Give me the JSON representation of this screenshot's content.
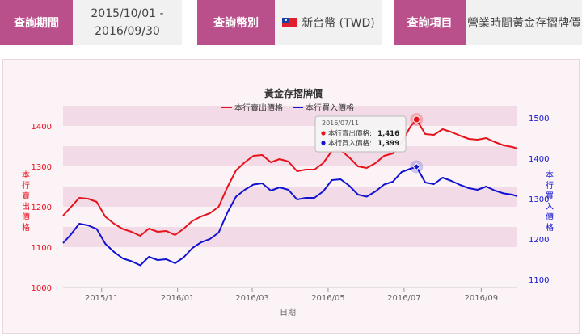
{
  "query": {
    "period_label": "查詢期間",
    "period_start": "2015/10/01 -",
    "period_end": "2016/09/30",
    "currency_label": "查詢幣別",
    "currency_value": "新台幣 (TWD)",
    "item_label": "查詢項目",
    "item_value": "營業時間黃金存摺牌價"
  },
  "colors": {
    "accent": "#b9508c",
    "sell": "#e8121c",
    "buy": "#1212d2",
    "band": "#f2dbe6"
  },
  "chart_data": {
    "type": "line",
    "title": "黃金存摺牌價",
    "xlabel": "日期",
    "ylabel_left": "本行賣出價格",
    "ylabel_right": "本行買入價格",
    "ylim_left": [
      1000,
      1400
    ],
    "ylim_right": [
      1100,
      1500
    ],
    "yticks_left": [
      "1000",
      "1100",
      "1200",
      "1300",
      "1400"
    ],
    "yticks_right": [
      "1100",
      "1200",
      "1300",
      "1400",
      "1500"
    ],
    "xticks": [
      "2015/11",
      "2016/01",
      "2016/03",
      "2016/05",
      "2016/07",
      "2016/09"
    ],
    "legend_position": "top-center",
    "series": [
      {
        "name": "本行賣出價格",
        "axis": "left",
        "color": "#e8121c",
        "points": [
          [
            "2015-10-01",
            1178
          ],
          [
            "2015-10-07",
            1198
          ],
          [
            "2015-10-14",
            1222
          ],
          [
            "2015-10-21",
            1220
          ],
          [
            "2015-10-28",
            1212
          ],
          [
            "2015-11-04",
            1175
          ],
          [
            "2015-11-11",
            1158
          ],
          [
            "2015-11-18",
            1145
          ],
          [
            "2015-11-25",
            1138
          ],
          [
            "2015-12-02",
            1128
          ],
          [
            "2015-12-09",
            1146
          ],
          [
            "2015-12-16",
            1138
          ],
          [
            "2015-12-23",
            1140
          ],
          [
            "2015-12-30",
            1130
          ],
          [
            "2016-01-06",
            1146
          ],
          [
            "2016-01-13",
            1165
          ],
          [
            "2016-01-20",
            1176
          ],
          [
            "2016-01-27",
            1184
          ],
          [
            "2016-02-03",
            1200
          ],
          [
            "2016-02-10",
            1248
          ],
          [
            "2016-02-17",
            1290
          ],
          [
            "2016-02-24",
            1310
          ],
          [
            "2016-03-02",
            1326
          ],
          [
            "2016-03-09",
            1328
          ],
          [
            "2016-03-16",
            1310
          ],
          [
            "2016-03-23",
            1318
          ],
          [
            "2016-03-30",
            1312
          ],
          [
            "2016-04-06",
            1288
          ],
          [
            "2016-04-13",
            1292
          ],
          [
            "2016-04-20",
            1292
          ],
          [
            "2016-04-27",
            1308
          ],
          [
            "2016-05-04",
            1338
          ],
          [
            "2016-05-11",
            1340
          ],
          [
            "2016-05-18",
            1322
          ],
          [
            "2016-05-25",
            1300
          ],
          [
            "2016-06-01",
            1296
          ],
          [
            "2016-06-08",
            1308
          ],
          [
            "2016-06-15",
            1326
          ],
          [
            "2016-06-22",
            1332
          ],
          [
            "2016-06-29",
            1358
          ],
          [
            "2016-07-06",
            1398
          ],
          [
            "2016-07-11",
            1416
          ],
          [
            "2016-07-18",
            1380
          ],
          [
            "2016-07-25",
            1378
          ],
          [
            "2016-08-01",
            1392
          ],
          [
            "2016-08-08",
            1385
          ],
          [
            "2016-08-15",
            1376
          ],
          [
            "2016-08-22",
            1368
          ],
          [
            "2016-08-29",
            1366
          ],
          [
            "2016-09-05",
            1370
          ],
          [
            "2016-09-12",
            1360
          ],
          [
            "2016-09-19",
            1352
          ],
          [
            "2016-09-26",
            1348
          ],
          [
            "2016-09-30",
            1344
          ]
        ]
      },
      {
        "name": "本行買入價格",
        "axis": "right",
        "color": "#1212d2",
        "points": [
          [
            "2015-10-01",
            1210
          ],
          [
            "2015-10-07",
            1230
          ],
          [
            "2015-10-14",
            1258
          ],
          [
            "2015-10-21",
            1254
          ],
          [
            "2015-10-28",
            1245
          ],
          [
            "2015-11-04",
            1208
          ],
          [
            "2015-11-11",
            1188
          ],
          [
            "2015-11-18",
            1172
          ],
          [
            "2015-11-25",
            1165
          ],
          [
            "2015-12-02",
            1155
          ],
          [
            "2015-12-09",
            1176
          ],
          [
            "2015-12-16",
            1168
          ],
          [
            "2015-12-23",
            1170
          ],
          [
            "2015-12-30",
            1160
          ],
          [
            "2016-01-06",
            1175
          ],
          [
            "2016-01-13",
            1198
          ],
          [
            "2016-01-20",
            1212
          ],
          [
            "2016-01-27",
            1220
          ],
          [
            "2016-02-03",
            1236
          ],
          [
            "2016-02-10",
            1285
          ],
          [
            "2016-02-17",
            1325
          ],
          [
            "2016-02-24",
            1342
          ],
          [
            "2016-03-02",
            1355
          ],
          [
            "2016-03-09",
            1358
          ],
          [
            "2016-03-16",
            1340
          ],
          [
            "2016-03-23",
            1348
          ],
          [
            "2016-03-30",
            1342
          ],
          [
            "2016-04-06",
            1318
          ],
          [
            "2016-04-13",
            1322
          ],
          [
            "2016-04-20",
            1322
          ],
          [
            "2016-04-27",
            1338
          ],
          [
            "2016-05-04",
            1366
          ],
          [
            "2016-05-11",
            1368
          ],
          [
            "2016-05-18",
            1352
          ],
          [
            "2016-05-25",
            1330
          ],
          [
            "2016-06-01",
            1325
          ],
          [
            "2016-06-08",
            1338
          ],
          [
            "2016-06-15",
            1355
          ],
          [
            "2016-06-22",
            1362
          ],
          [
            "2016-06-29",
            1386
          ],
          [
            "2016-07-06",
            1394
          ],
          [
            "2016-07-11",
            1399
          ],
          [
            "2016-07-18",
            1360
          ],
          [
            "2016-07-25",
            1356
          ],
          [
            "2016-08-01",
            1372
          ],
          [
            "2016-08-08",
            1364
          ],
          [
            "2016-08-15",
            1354
          ],
          [
            "2016-08-22",
            1346
          ],
          [
            "2016-08-29",
            1342
          ],
          [
            "2016-09-05",
            1350
          ],
          [
            "2016-09-12",
            1340
          ],
          [
            "2016-09-19",
            1333
          ],
          [
            "2016-09-26",
            1330
          ],
          [
            "2016-09-30",
            1326
          ]
        ]
      }
    ],
    "tooltip": {
      "date": "2016/07/11",
      "rows": [
        {
          "name": "本行賣出價格",
          "value": "1,416"
        },
        {
          "name": "本行買入價格",
          "value": "1,399"
        }
      ]
    }
  }
}
